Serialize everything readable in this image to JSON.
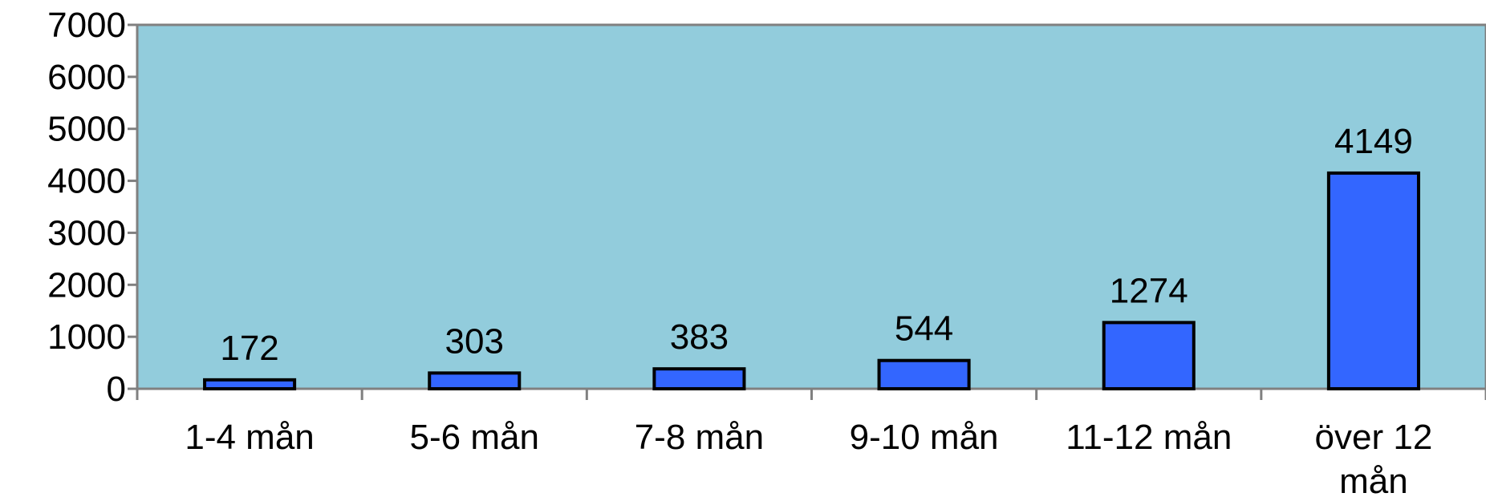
{
  "chart_data": {
    "type": "bar",
    "categories": [
      "1-4 mån",
      "5-6 mån",
      "7-8 mån",
      "9-10 mån",
      "11-12 mån",
      "över 12 mån"
    ],
    "category_lines": [
      [
        "1-4 mån"
      ],
      [
        "5-6 mån"
      ],
      [
        "7-8 mån"
      ],
      [
        "9-10 mån"
      ],
      [
        "11-12 mån"
      ],
      [
        "över 12",
        "mån"
      ]
    ],
    "values": [
      172,
      303,
      383,
      544,
      1274,
      4149
    ],
    "data_labels": [
      "172",
      "303",
      "383",
      "544",
      "1274",
      "4149"
    ],
    "y_ticks": [
      "0",
      "1000",
      "2000",
      "3000",
      "4000",
      "5000",
      "6000",
      "7000"
    ],
    "ylim": [
      0,
      7000
    ],
    "title": "",
    "xlabel": "",
    "ylabel": "",
    "grid": false,
    "legend": "none",
    "colors": {
      "plot_background": "#92CCDC",
      "bar_fill": "#3366FF",
      "bar_stroke": "#000000",
      "axis": "#808080"
    }
  }
}
